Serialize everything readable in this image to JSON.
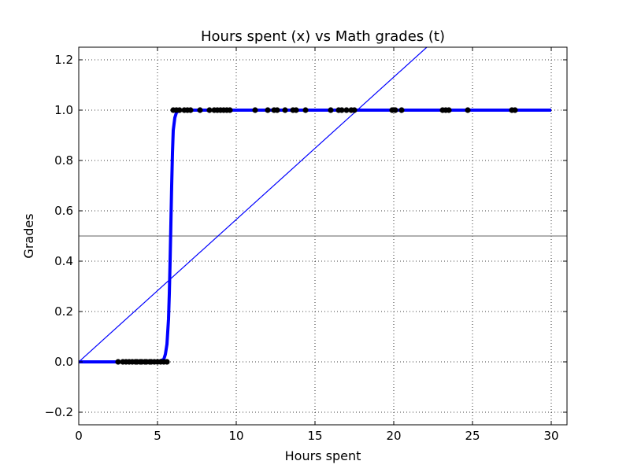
{
  "chart_data": {
    "type": "scatter",
    "title": "Hours spent (x) vs Math grades (t)",
    "xlabel": "Hours spent",
    "ylabel": "Grades",
    "xlim": [
      0,
      31
    ],
    "ylim": [
      -0.25,
      1.25
    ],
    "x_ticks": [
      0,
      5,
      10,
      15,
      20,
      25,
      30
    ],
    "x_tick_labels": [
      "0",
      "5",
      "10",
      "15",
      "20",
      "25",
      "30"
    ],
    "y_ticks": [
      -0.2,
      0.0,
      0.2,
      0.4,
      0.6,
      0.8,
      1.0,
      1.2
    ],
    "y_tick_labels": [
      "−0.2",
      "0.0",
      "0.2",
      "0.4",
      "0.6",
      "0.8",
      "1.0",
      "1.2"
    ],
    "grid": true,
    "legend": "none",
    "colors": {
      "points": "#000000",
      "sigmoid": "#0000ff",
      "linear": "#0000ff",
      "threshold": "#808080"
    },
    "points": {
      "name": "",
      "x": [
        2.5,
        2.8,
        3.0,
        3.2,
        3.4,
        3.6,
        3.7,
        3.9,
        4.0,
        4.2,
        4.3,
        4.5,
        4.6,
        4.8,
        5.0,
        5.2,
        5.4,
        5.6,
        6.0,
        6.2,
        6.4,
        6.7,
        6.9,
        7.1,
        7.7,
        8.3,
        8.6,
        8.8,
        9.0,
        9.2,
        9.4,
        9.6,
        11.2,
        12.0,
        12.4,
        12.6,
        13.1,
        13.6,
        13.8,
        14.4,
        16.0,
        16.5,
        16.7,
        17.0,
        17.3,
        17.5,
        19.9,
        20.1,
        20.5,
        23.1,
        23.3,
        23.5,
        24.7,
        27.5,
        27.7
      ],
      "y": [
        0,
        0,
        0,
        0,
        0,
        0,
        0,
        0,
        0,
        0,
        0,
        0,
        0,
        0,
        0,
        0,
        0,
        0,
        1,
        1,
        1,
        1,
        1,
        1,
        1,
        1,
        1,
        1,
        1,
        1,
        1,
        1,
        1,
        1,
        1,
        1,
        1,
        1,
        1,
        1,
        1,
        1,
        1,
        1,
        1,
        1,
        1,
        1,
        1,
        1,
        1,
        1,
        1,
        1,
        1
      ]
    },
    "sigmoid_fit": {
      "name": "",
      "x": [
        0,
        2,
        4,
        5,
        5.4,
        5.5,
        5.6,
        5.7,
        5.75,
        5.8,
        5.85,
        5.9,
        5.95,
        6.0,
        6.1,
        6.2,
        6.4,
        7,
        10,
        15,
        20,
        25,
        30
      ],
      "y": [
        0.0,
        0.0,
        0.0,
        0.0,
        0.01,
        0.03,
        0.07,
        0.17,
        0.27,
        0.4,
        0.55,
        0.7,
        0.83,
        0.92,
        0.97,
        0.99,
        1.0,
        1.0,
        1.0,
        1.0,
        1.0,
        1.0,
        1.0
      ]
    },
    "linear_fit": {
      "name": "",
      "x": [
        0,
        22.1
      ],
      "y": [
        0.0,
        1.25
      ]
    },
    "threshold": {
      "name": "",
      "y": 0.5
    }
  }
}
